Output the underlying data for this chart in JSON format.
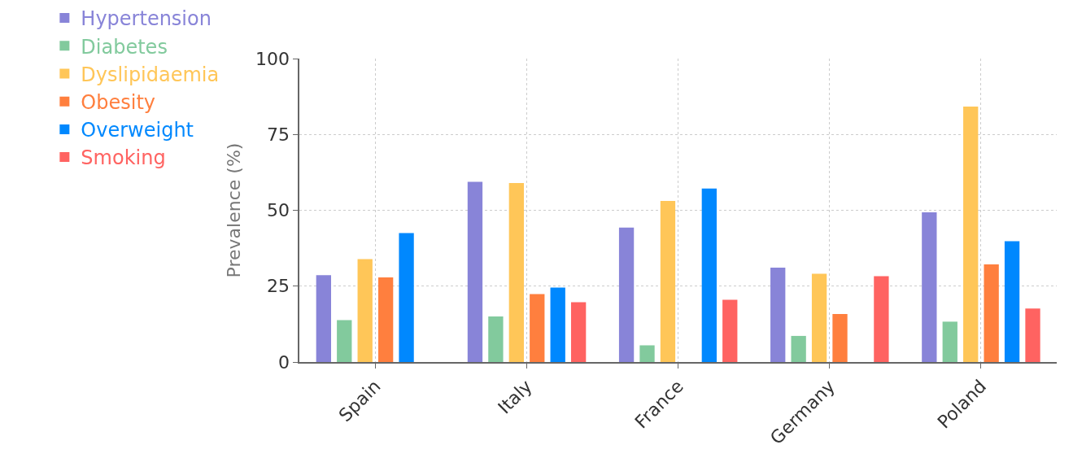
{
  "chart_data": {
    "type": "bar",
    "ylabel": "Prevalence (%)",
    "categories": [
      "Spain",
      "Italy",
      "France",
      "Germany",
      "Poland"
    ],
    "series": [
      {
        "name": "Hypertension",
        "color": "#8884d8",
        "values": [
          28.6,
          59.4,
          44.3,
          31.1,
          49.3
        ]
      },
      {
        "name": "Diabetes",
        "color": "#82ca9d",
        "values": [
          13.8,
          15.0,
          5.5,
          8.6,
          13.3
        ]
      },
      {
        "name": "Dyslipidaemia",
        "color": "#ffc658",
        "values": [
          33.9,
          59.0,
          53.1,
          29.1,
          84.2
        ]
      },
      {
        "name": "Obesity",
        "color": "#ff7f3e",
        "values": [
          27.9,
          22.4,
          null,
          15.8,
          32.2
        ]
      },
      {
        "name": "Overweight",
        "color": "#0088fe",
        "values": [
          42.5,
          24.5,
          57.2,
          null,
          39.8
        ]
      },
      {
        "name": "Smoking",
        "color": "#ff6361",
        "values": [
          null,
          19.7,
          20.5,
          28.3,
          17.6
        ]
      }
    ],
    "ylim": [
      0,
      100
    ],
    "yticks": [
      0,
      25,
      50,
      75,
      100
    ],
    "grid": true,
    "legend": "top"
  }
}
